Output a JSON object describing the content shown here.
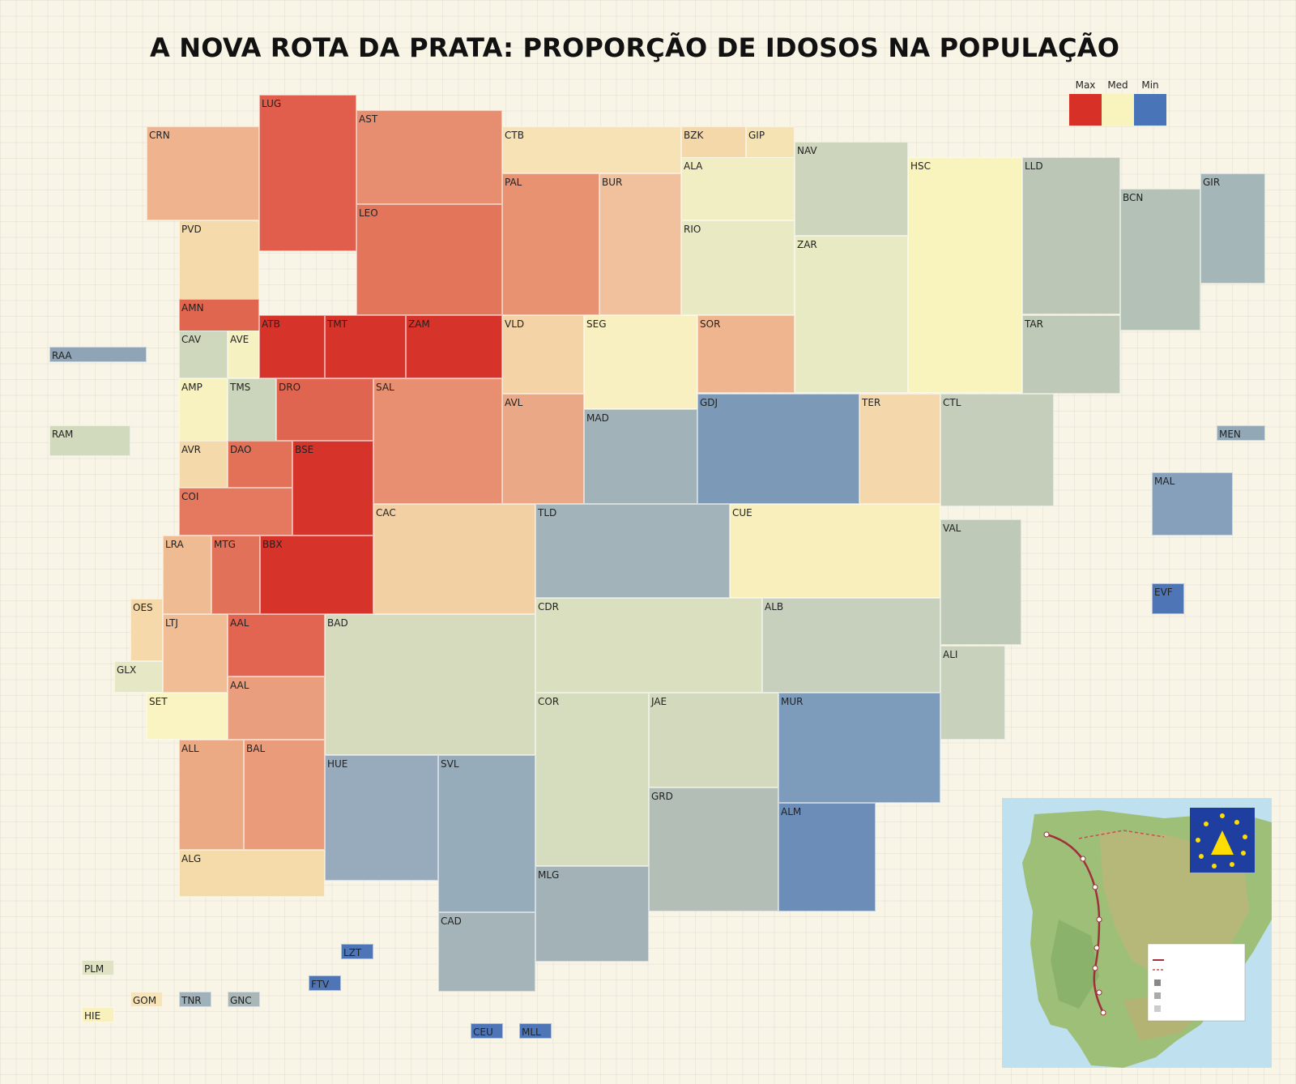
{
  "title": "A NOVA ROTA DA PRATA: PROPORÇÃO DE IDOSOS NA POPULAÇÃO",
  "legend": {
    "max_label": "Max",
    "med_label": "Med",
    "min_label": "Min",
    "max_color": "#d73027",
    "med_color": "#f9f3bd",
    "min_color": "#4a74b8"
  },
  "regions": [
    {
      "code": "LUG",
      "color": "#e05e4b"
    },
    {
      "code": "AST",
      "color": "#e88e70"
    },
    {
      "code": "CRN",
      "color": "#efb48e"
    },
    {
      "code": "CTB",
      "color": "#f6e2b5"
    },
    {
      "code": "BZK",
      "color": "#f5d8aa"
    },
    {
      "code": "GIP",
      "color": "#f6e3b3"
    },
    {
      "code": "ALA",
      "color": "#f1eec3"
    },
    {
      "code": "NAV",
      "color": "#cdd6bd"
    },
    {
      "code": "HSC",
      "color": "#f9f3bd"
    },
    {
      "code": "LLD",
      "color": "#bcc6b6"
    },
    {
      "code": "GIR",
      "color": "#a5b6b8"
    },
    {
      "code": "BCN",
      "color": "#b3c1b6"
    },
    {
      "code": "PAL",
      "color": "#e89272"
    },
    {
      "code": "BUR",
      "color": "#f0c19c"
    },
    {
      "code": "RIO",
      "color": "#e9e9c4"
    },
    {
      "code": "ZAR",
      "color": "#e8eac4"
    },
    {
      "code": "PVD",
      "color": "#f5dbab"
    },
    {
      "code": "LEO",
      "color": "#e3755b"
    },
    {
      "code": "AMN",
      "color": "#e1664f"
    },
    {
      "code": "ATB",
      "color": "#d6342b"
    },
    {
      "code": "TMT",
      "color": "#d6342b"
    },
    {
      "code": "ZAM",
      "color": "#d6342b"
    },
    {
      "code": "VLD",
      "color": "#f4d4a6"
    },
    {
      "code": "SEG",
      "color": "#f8f0c0"
    },
    {
      "code": "SOR",
      "color": "#efb58f"
    },
    {
      "code": "TAR",
      "color": "#bfc9b7"
    },
    {
      "code": "RAA",
      "color": "#8fa5b7"
    },
    {
      "code": "CAV",
      "color": "#cfd8bd"
    },
    {
      "code": "AVE",
      "color": "#f6f1c1"
    },
    {
      "code": "AMP",
      "color": "#f8f2c0"
    },
    {
      "code": "TMS",
      "color": "#cad5bc"
    },
    {
      "code": "DRO",
      "color": "#e06550"
    },
    {
      "code": "SAL",
      "color": "#e88f71"
    },
    {
      "code": "AVL",
      "color": "#eba886"
    },
    {
      "code": "MAD",
      "color": "#a1b2b9"
    },
    {
      "code": "GDJ",
      "color": "#7c9ab7"
    },
    {
      "code": "TER",
      "color": "#f4d7aa"
    },
    {
      "code": "CTL",
      "color": "#c4cebb"
    },
    {
      "code": "RAM",
      "color": "#d2dabe"
    },
    {
      "code": "MEN",
      "color": "#93a8b6"
    },
    {
      "code": "AVR",
      "color": "#f4d9aa"
    },
    {
      "code": "DAO",
      "color": "#e27158"
    },
    {
      "code": "BSE",
      "color": "#d6342b"
    },
    {
      "code": "COI",
      "color": "#e4795f"
    },
    {
      "code": "MAL",
      "color": "#869fba"
    },
    {
      "code": "CAC",
      "color": "#f3d0a4"
    },
    {
      "code": "TLD",
      "color": "#a2b3b9"
    },
    {
      "code": "CUE",
      "color": "#f8efbd"
    },
    {
      "code": "VAL",
      "color": "#bec9b7"
    },
    {
      "code": "LRA",
      "color": "#efbb92"
    },
    {
      "code": "MTG",
      "color": "#e27159"
    },
    {
      "code": "BBX",
      "color": "#d6342b"
    },
    {
      "code": "EVF",
      "color": "#4e76b7"
    },
    {
      "code": "OES",
      "color": "#f5d9ab"
    },
    {
      "code": "CDR",
      "color": "#d9dfbf"
    },
    {
      "code": "ALB",
      "color": "#c7d0bc"
    },
    {
      "code": "LTJ",
      "color": "#f0bd95"
    },
    {
      "code": "AAL",
      "color": "#e26552"
    },
    {
      "code": "BAD",
      "color": "#d6dbbe"
    },
    {
      "code": "ALI",
      "color": "#c8d1bb"
    },
    {
      "code": "GLX",
      "color": "#e6e8c5"
    },
    {
      "code": "AAL",
      "color": "#e99f7d"
    },
    {
      "code": "SET",
      "color": "#f9f4c1"
    },
    {
      "code": "COR",
      "color": "#d6dcbe"
    },
    {
      "code": "JAE",
      "color": "#d2d9bd"
    },
    {
      "code": "MUR",
      "color": "#7d9cbb"
    },
    {
      "code": "ALL",
      "color": "#eba984"
    },
    {
      "code": "BAL",
      "color": "#e99b7a"
    },
    {
      "code": "HUE",
      "color": "#97abbc"
    },
    {
      "code": "SVL",
      "color": "#97acbb"
    },
    {
      "code": "GRD",
      "color": "#b3bfb6"
    },
    {
      "code": "ALM",
      "color": "#6d8db9"
    },
    {
      "code": "ALG",
      "color": "#f4dba9"
    },
    {
      "code": "MLG",
      "color": "#a2b2b7"
    },
    {
      "code": "CAD",
      "color": "#a5b4b9"
    },
    {
      "code": "LZT",
      "color": "#4e76b7"
    },
    {
      "code": "PLM",
      "color": "#dfe3c3"
    },
    {
      "code": "FTV",
      "color": "#4e76b7"
    },
    {
      "code": "GOM",
      "color": "#f7e4b7"
    },
    {
      "code": "TNR",
      "color": "#9fb1bb"
    },
    {
      "code": "GNC",
      "color": "#a9b7b9"
    },
    {
      "code": "HIE",
      "color": "#f8f0bd"
    },
    {
      "code": "CEU",
      "color": "#4e76b7"
    },
    {
      "code": "MLL",
      "color": "#4e76b7"
    }
  ]
}
